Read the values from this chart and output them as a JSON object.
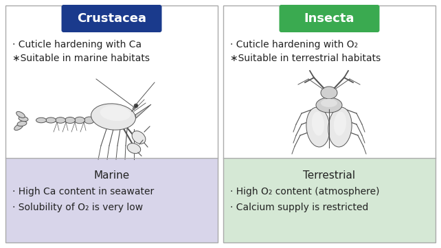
{
  "left_title": "Crustacea",
  "right_title": "Insecta",
  "left_title_bg": "#1a3a8c",
  "right_title_bg": "#3aaa50",
  "left_title_color": "#ffffff",
  "right_title_color": "#ffffff",
  "left_top_bg": "#ffffff",
  "right_top_bg": "#ffffff",
  "left_bottom_bg": "#d8d5ea",
  "right_bottom_bg": "#d5e8d5",
  "left_top_line1": "· Cuticle hardening with Ca",
  "left_top_line2": "∗Suitable in marine habitats",
  "right_top_line1": "· Cuticle hardening with O₂",
  "right_top_line2": "∗Suitable in terrestrial habitats",
  "left_bottom_label": "Marine",
  "right_bottom_label": "Terrestrial",
  "left_bottom_line1": "· High Ca content in seawater",
  "left_bottom_line2": "· Solubility of O₂ is very low",
  "right_bottom_line1": "· High O₂ content (atmosphere)",
  "right_bottom_line2": "· Calcium supply is restricted",
  "border_color": "#aaaaaa",
  "text_color": "#222222",
  "animal_edge": "#555555",
  "animal_face_light": "#e8e8e8",
  "animal_face_mid": "#d0d0d0",
  "animal_face_dark": "#b8b8b8",
  "fig_bg": "#ffffff"
}
